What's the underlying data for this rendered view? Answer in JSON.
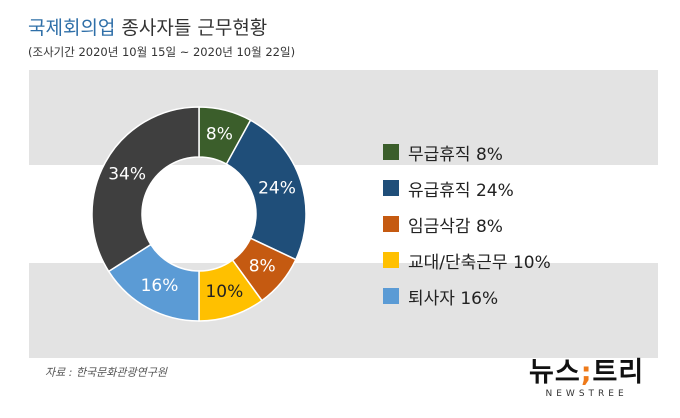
{
  "header": {
    "title_accent": "국제회의업",
    "title_rest": "종사자들 근무현황",
    "subtitle": "(조사기간 2020년 10월 15일 ~ 2020년 10월 22일)"
  },
  "chart_data": {
    "type": "pie",
    "donut": true,
    "legend_position": "right",
    "slices": [
      {
        "label": "무급휴직",
        "value": 8,
        "value_label": "8%",
        "legend": "무급휴직 8%",
        "color": "#3b5e2b"
      },
      {
        "label": "유급휴직",
        "value": 24,
        "value_label": "24%",
        "legend": "유급휴직 24%",
        "color": "#1f4e79"
      },
      {
        "label": "임금삭감",
        "value": 8,
        "value_label": "8%",
        "legend": "임금삭감 8%",
        "color": "#c55a11"
      },
      {
        "label": "교대/단축근무",
        "value": 10,
        "value_label": "10%",
        "legend": "교대/단축근무 10%",
        "color": "#ffc000"
      },
      {
        "label": "퇴사자",
        "value": 16,
        "value_label": "16%",
        "legend": "퇴사자 16%",
        "color": "#5b9bd5"
      },
      {
        "label": "",
        "value": 34,
        "value_label": "34%",
        "legend": "",
        "color": "#3f3f3f"
      }
    ]
  },
  "footer": {
    "source": "자료 : 한국문화관광연구원",
    "logo_left": "뉴스",
    "logo_mark": ";",
    "logo_right": "트리",
    "logo_sub": "NEWSTREE"
  }
}
